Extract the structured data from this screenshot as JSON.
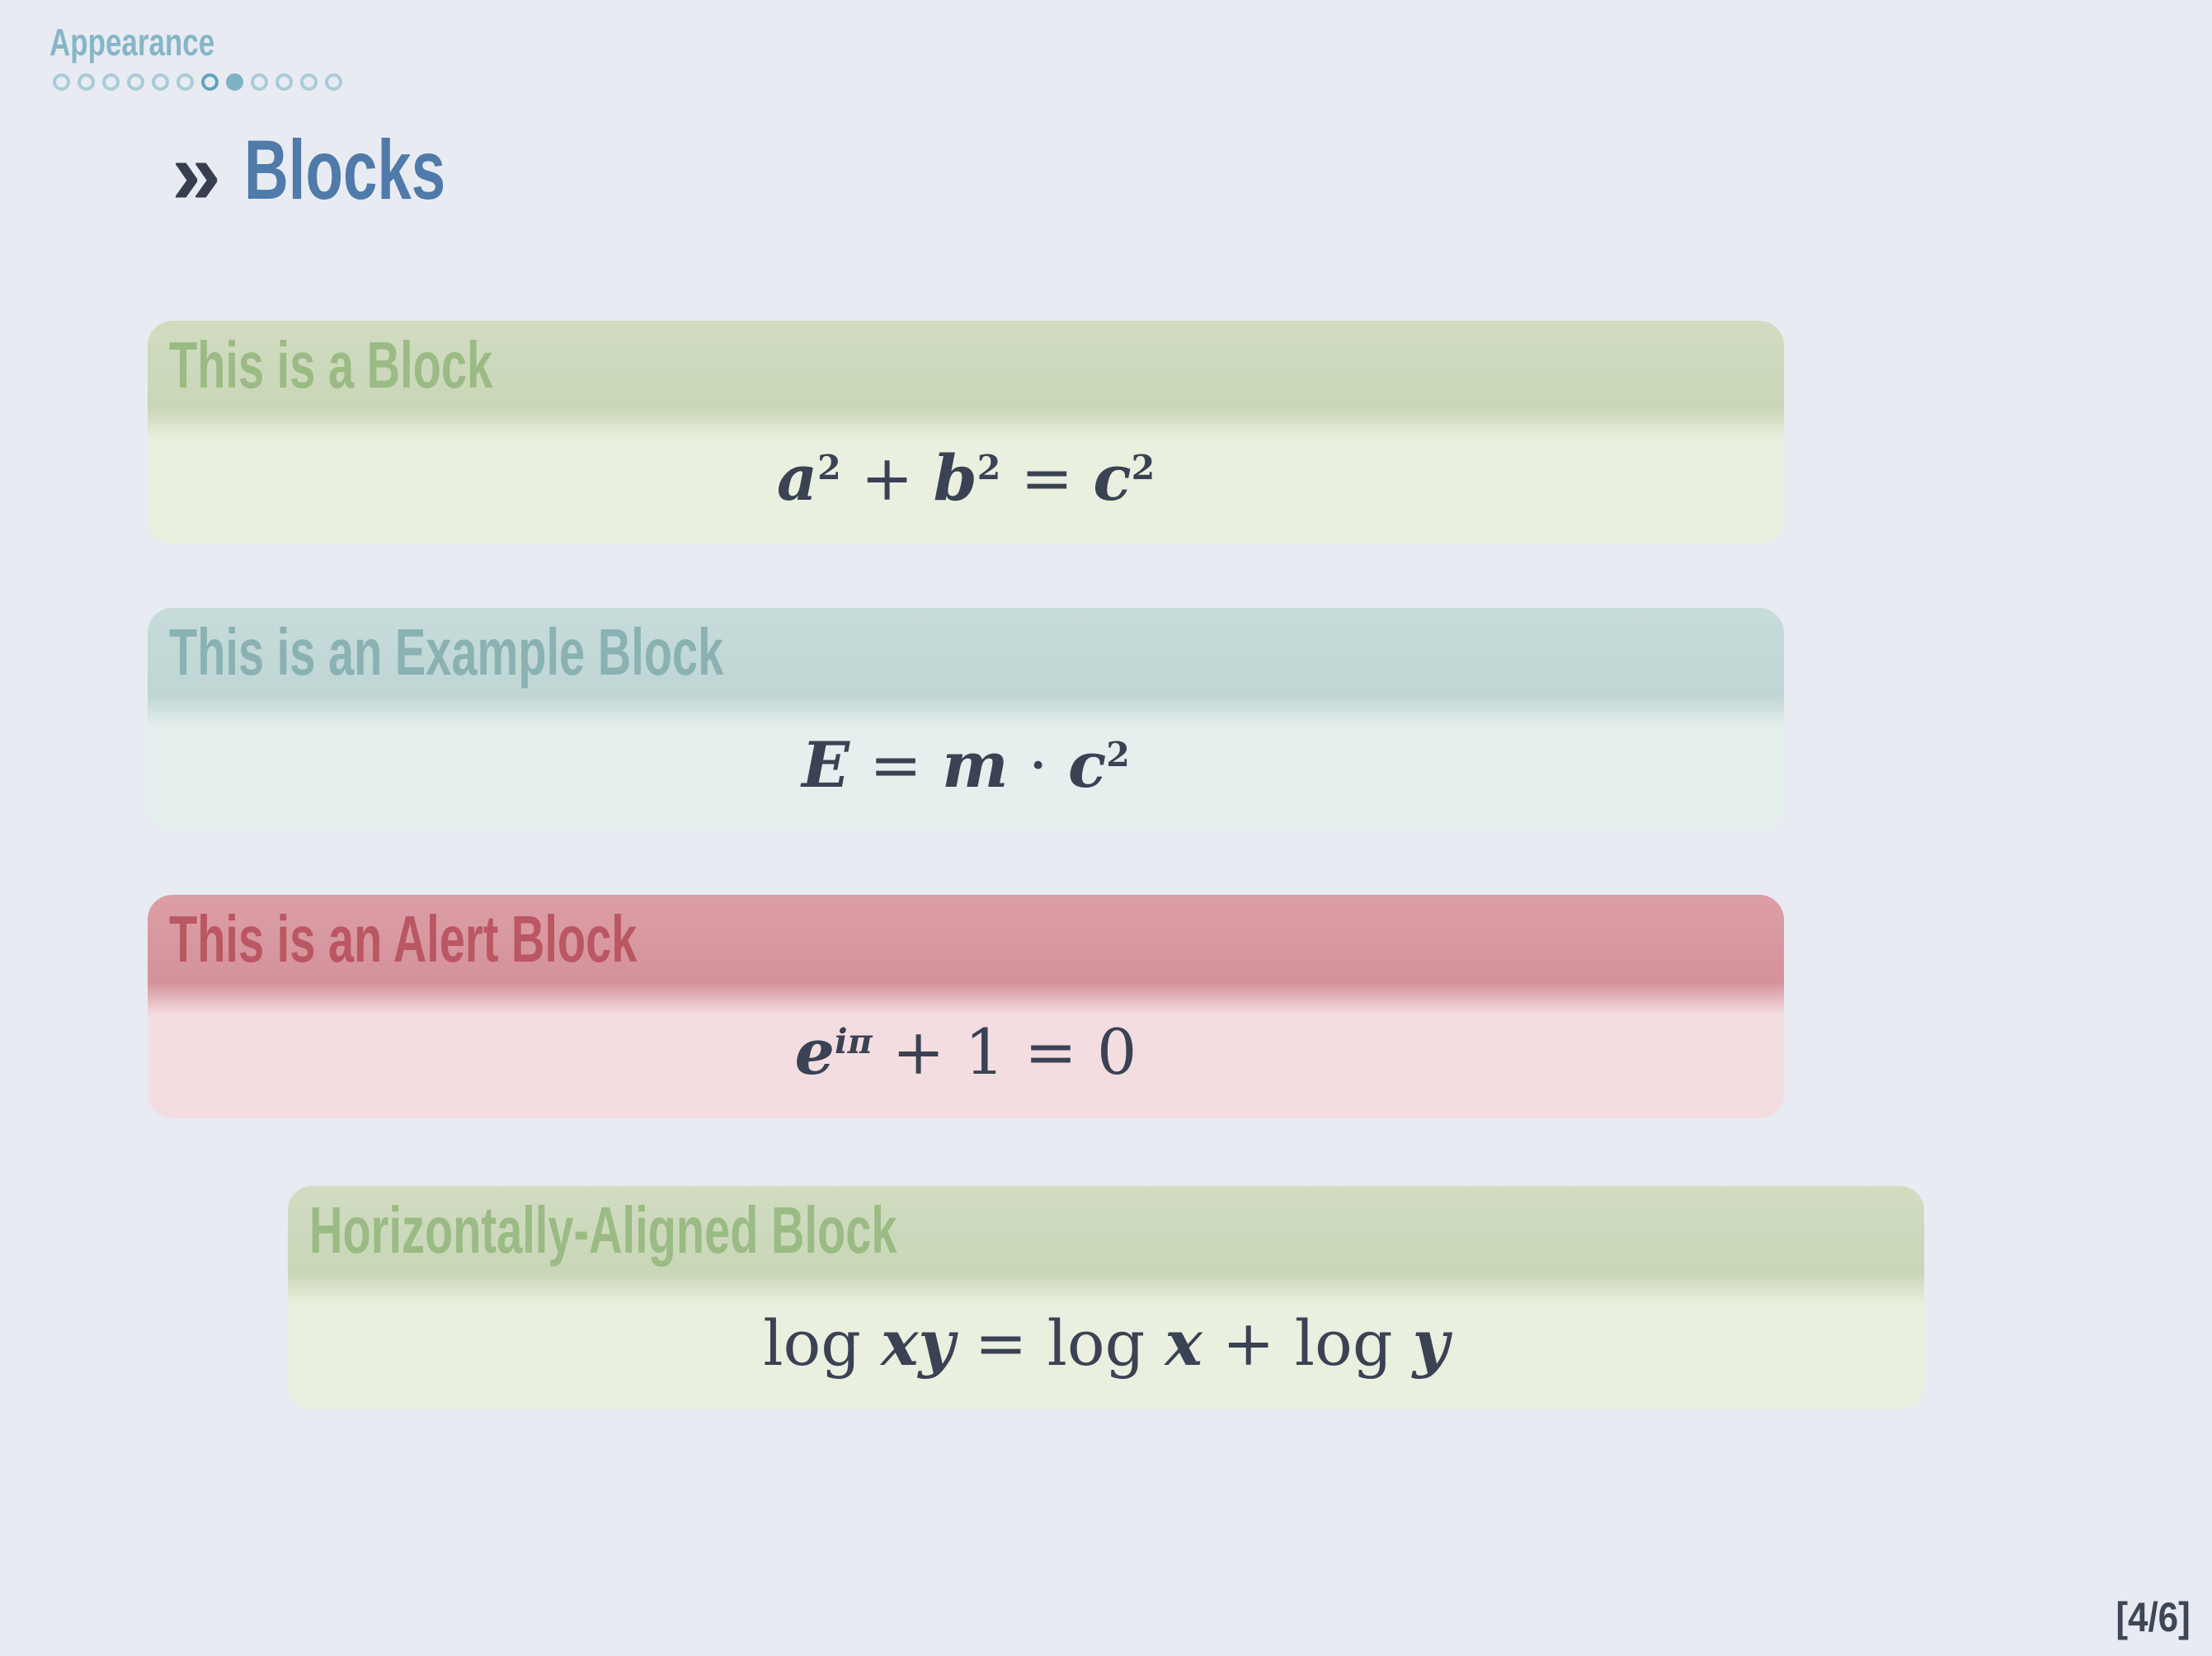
{
  "colors": {
    "background": "#E8EBF2",
    "section_label": "#85B6C8",
    "dot_outline": "#A8CCD8",
    "dot_highlight_outline": "#5FA3BD",
    "dot_active_fill": "#7EB2C5",
    "title_marker": "#373E4E",
    "frame_title": "#4F7AA9",
    "math_text": "#3A4254",
    "green_header": "#CBD7B8",
    "green_title_text": "#9ABB84",
    "green_body": "#EAF0DF",
    "teal_header": "#C3D9D7",
    "teal_title_text": "#8AB2B3",
    "teal_body": "#E5EFED",
    "red_header": "#D8969F",
    "red_title_text": "#BB5663",
    "red_body": "#F3DDE0",
    "footer_text": "#3E4756"
  },
  "header": {
    "section_label": "Appearance",
    "progress_dots": {
      "total": 12,
      "active_index": 8,
      "highlighted_outline_index": 7
    }
  },
  "slide": {
    "title_marker": "»",
    "title": "Blocks"
  },
  "blocks": [
    {
      "type": "standard",
      "title": "This is a Block",
      "formula_plain": "a² + b² = c²",
      "formula_tokens": [
        [
          "i",
          "a"
        ],
        [
          "sup",
          "2"
        ],
        [
          "t",
          " + "
        ],
        [
          "i",
          "b"
        ],
        [
          "sup",
          "2"
        ],
        [
          "t",
          " = "
        ],
        [
          "i",
          "c"
        ],
        [
          "sup",
          "2"
        ]
      ]
    },
    {
      "type": "example",
      "title": "This is an Example Block",
      "formula_plain": "E = m · c²",
      "formula_tokens": [
        [
          "i",
          "E"
        ],
        [
          "t",
          " = "
        ],
        [
          "i",
          "m"
        ],
        [
          "t",
          " · "
        ],
        [
          "i",
          "c"
        ],
        [
          "sup",
          "2"
        ]
      ]
    },
    {
      "type": "alert",
      "title": "This is an Alert Block",
      "formula_plain": "e^{iπ} + 1 = 0",
      "formula_tokens": [
        [
          "i",
          "e"
        ],
        [
          "isup",
          "iπ"
        ],
        [
          "t",
          " + 1 = 0"
        ]
      ]
    },
    {
      "type": "standard-centered",
      "title": "Horizontally-Aligned Block",
      "formula_plain": "log xy = log x + log y",
      "formula_tokens": [
        [
          "r",
          "log "
        ],
        [
          "i",
          "xy"
        ],
        [
          "t",
          " = "
        ],
        [
          "r",
          "log "
        ],
        [
          "i",
          "x"
        ],
        [
          "t",
          " + "
        ],
        [
          "r",
          "log "
        ],
        [
          "i",
          "y"
        ]
      ]
    }
  ],
  "footer": {
    "page_indicator": "[4/6]"
  }
}
